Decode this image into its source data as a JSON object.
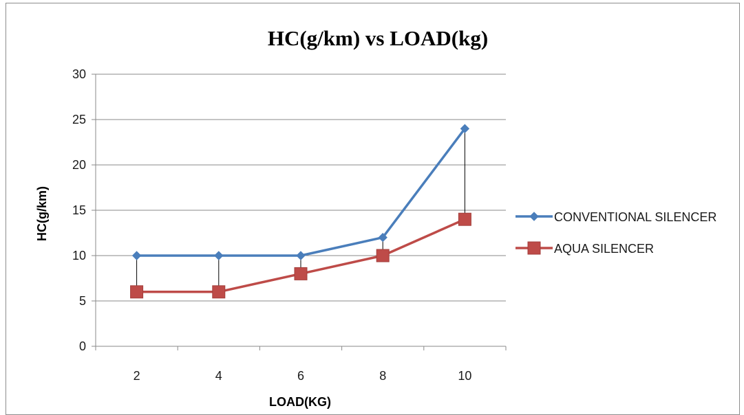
{
  "chart_data": {
    "type": "line",
    "title": "HC(g/km) vs LOAD(kg)",
    "xlabel": "LOAD(KG)",
    "ylabel": "HC(g/km)",
    "categories": [
      "2",
      "4",
      "6",
      "8",
      "10"
    ],
    "yticks": [
      "0",
      "5",
      "10",
      "15",
      "20",
      "25",
      "30"
    ],
    "ylim": [
      0,
      30
    ],
    "grid": true,
    "legend_position": "right",
    "drop_lines": true,
    "series": [
      {
        "name": "CONVENTIONAL SILENCER",
        "values": [
          10,
          10,
          10,
          12,
          24
        ],
        "color": "#4a7ebb",
        "marker": "diamond"
      },
      {
        "name": "AQUA SILENCER",
        "values": [
          6,
          6,
          8,
          10,
          14
        ],
        "color": "#be4b48",
        "marker": "square"
      }
    ]
  }
}
